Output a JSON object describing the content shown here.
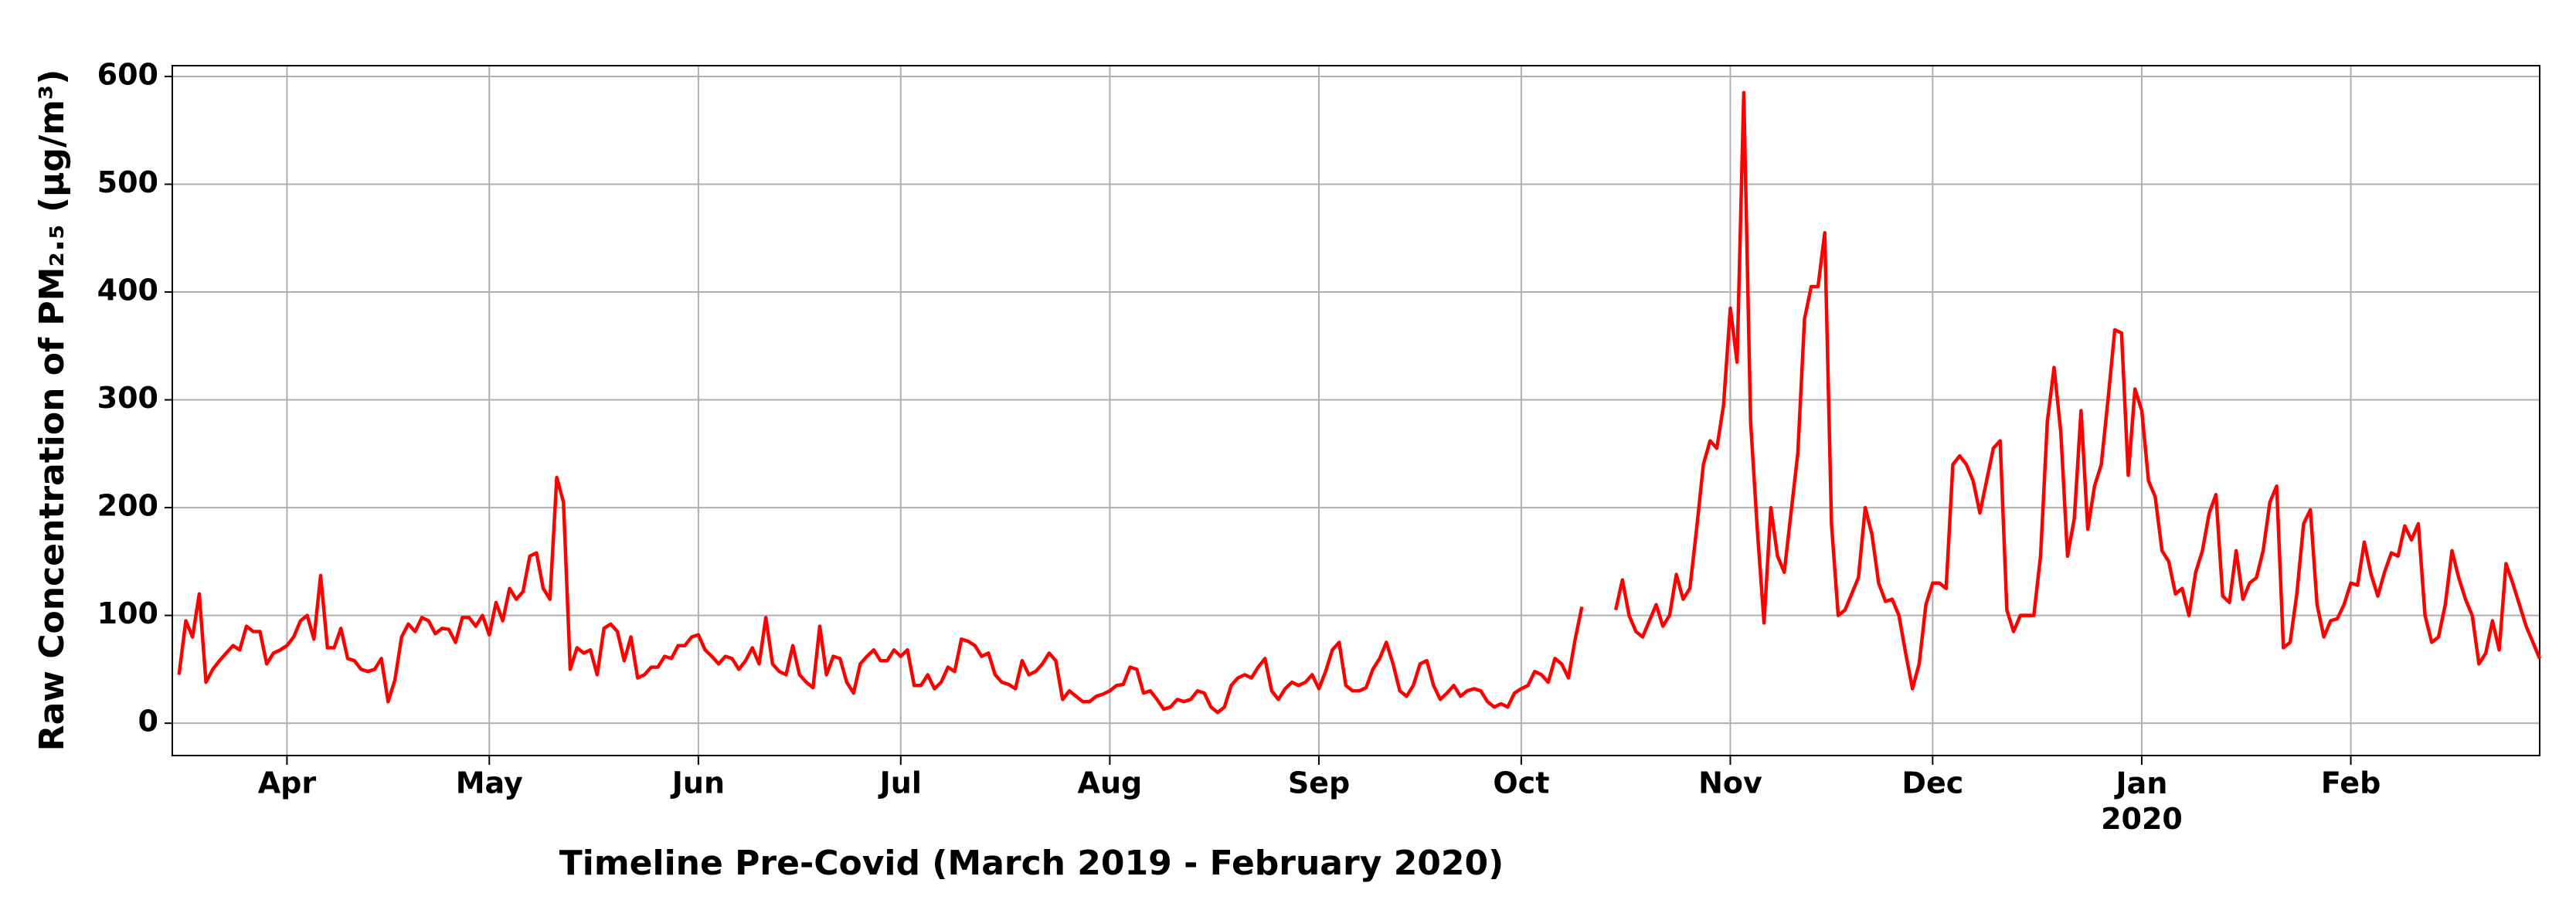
{
  "chart_data": {
    "type": "line",
    "xlabel": "Timeline Pre-Covid (March 2019 - February 2020)",
    "ylabel": "Raw Concentration of PM₂.₅ (μg/m³)",
    "xlim": [
      14,
      365
    ],
    "ylim": [
      -30,
      610
    ],
    "yticks": [
      0,
      100,
      200,
      300,
      400,
      500,
      600
    ],
    "xticks": [
      {
        "value": 31,
        "label": "Apr"
      },
      {
        "value": 61,
        "label": "May"
      },
      {
        "value": 92,
        "label": "Jun"
      },
      {
        "value": 122,
        "label": "Jul"
      },
      {
        "value": 153,
        "label": "Aug"
      },
      {
        "value": 184,
        "label": "Sep"
      },
      {
        "value": 214,
        "label": "Oct"
      },
      {
        "value": 245,
        "label": "Nov"
      },
      {
        "value": 275,
        "label": "Dec"
      },
      {
        "value": 306,
        "label": "Jan\n2020"
      },
      {
        "value": 337,
        "label": "Feb"
      }
    ],
    "grid": true,
    "x": [
      15,
      16,
      17,
      18,
      19,
      20,
      21,
      22,
      23,
      24,
      25,
      26,
      27,
      28,
      29,
      30,
      31,
      32,
      33,
      34,
      35,
      36,
      37,
      38,
      39,
      40,
      41,
      42,
      43,
      44,
      45,
      46,
      47,
      48,
      49,
      50,
      51,
      52,
      53,
      54,
      55,
      56,
      57,
      58,
      59,
      60,
      61,
      62,
      63,
      64,
      65,
      66,
      67,
      68,
      69,
      70,
      71,
      72,
      73,
      74,
      75,
      76,
      77,
      78,
      79,
      80,
      81,
      82,
      83,
      84,
      85,
      86,
      87,
      88,
      89,
      90,
      91,
      92,
      93,
      94,
      95,
      96,
      97,
      98,
      99,
      100,
      101,
      102,
      103,
      104,
      105,
      106,
      107,
      108,
      109,
      110,
      111,
      112,
      113,
      114,
      115,
      116,
      117,
      118,
      119,
      120,
      121,
      122,
      123,
      124,
      125,
      126,
      127,
      128,
      129,
      130,
      131,
      132,
      133,
      134,
      135,
      136,
      137,
      138,
      139,
      140,
      141,
      142,
      143,
      144,
      145,
      146,
      147,
      148,
      149,
      150,
      151,
      152,
      153,
      154,
      155,
      156,
      157,
      158,
      159,
      160,
      161,
      162,
      163,
      164,
      165,
      166,
      167,
      168,
      169,
      170,
      171,
      172,
      173,
      174,
      175,
      176,
      177,
      178,
      179,
      180,
      181,
      182,
      183,
      184,
      185,
      186,
      187,
      188,
      189,
      190,
      191,
      192,
      193,
      194,
      195,
      196,
      197,
      198,
      199,
      200,
      201,
      202,
      203,
      204,
      205,
      206,
      207,
      208,
      209,
      210,
      211,
      212,
      213,
      214,
      215,
      216,
      217,
      218,
      219,
      220,
      221,
      222,
      223,
      224,
      225,
      226,
      227,
      228,
      229,
      230,
      231,
      232,
      233,
      234,
      235,
      236,
      237,
      238,
      239,
      240,
      241,
      242,
      243,
      244,
      245,
      246,
      247,
      248,
      249,
      250,
      251,
      252,
      253,
      254,
      255,
      256,
      257,
      258,
      259,
      260,
      261,
      262,
      263,
      264,
      265,
      266,
      267,
      268,
      269,
      270,
      271,
      272,
      273,
      274,
      275,
      276,
      277,
      278,
      279,
      280,
      281,
      282,
      283,
      284,
      285,
      286,
      287,
      288,
      289,
      290,
      291,
      292,
      293,
      294,
      295,
      296,
      297,
      298,
      299,
      300,
      301,
      302,
      303,
      304,
      305,
      306,
      307,
      308,
      309,
      310,
      311,
      312,
      313,
      314,
      315,
      316,
      317,
      318,
      319,
      320,
      321,
      322,
      323,
      324,
      325,
      326,
      327,
      328,
      329,
      330,
      331,
      332,
      333,
      334,
      335,
      336,
      337,
      338,
      339,
      340,
      341,
      342,
      343,
      344,
      345,
      346,
      347,
      348,
      349,
      350,
      351,
      352,
      353,
      354,
      355,
      356,
      357,
      358,
      359,
      360,
      361,
      362,
      363,
      364,
      365
    ],
    "series": [
      {
        "name": "PM2.5",
        "color": "#ff0000",
        "values": [
          45,
          95,
          80,
          120,
          38,
          50,
          58,
          65,
          72,
          68,
          90,
          85,
          85,
          55,
          65,
          68,
          72,
          80,
          95,
          100,
          78,
          137,
          70,
          70,
          88,
          60,
          58,
          50,
          48,
          50,
          60,
          20,
          40,
          80,
          92,
          85,
          98,
          95,
          83,
          88,
          87,
          75,
          98,
          98,
          90,
          100,
          82,
          112,
          95,
          125,
          115,
          122,
          155,
          158,
          125,
          115,
          228,
          205,
          50,
          70,
          65,
          68,
          45,
          88,
          92,
          85,
          58,
          80,
          42,
          45,
          52,
          52,
          62,
          60,
          72,
          72,
          80,
          82,
          68,
          62,
          55,
          62,
          60,
          50,
          58,
          70,
          55,
          98,
          55,
          48,
          45,
          72,
          45,
          38,
          33,
          90,
          45,
          62,
          60,
          38,
          28,
          55,
          62,
          68,
          58,
          58,
          68,
          62,
          68,
          35,
          35,
          45,
          32,
          38,
          52,
          48,
          78,
          76,
          72,
          62,
          65,
          45,
          38,
          36,
          32,
          58,
          45,
          48,
          55,
          65,
          58,
          22,
          30,
          25,
          20,
          20,
          25,
          27,
          30,
          35,
          36,
          52,
          50,
          28,
          30,
          22,
          13,
          15,
          22,
          20,
          22,
          30,
          28,
          15,
          10,
          15,
          35,
          42,
          45,
          42,
          52,
          60,
          30,
          22,
          32,
          38,
          35,
          38,
          45,
          32,
          48,
          68,
          75,
          35,
          30,
          30,
          33,
          50,
          60,
          75,
          55,
          30,
          25,
          35,
          55,
          58,
          35,
          22,
          28,
          35,
          25,
          30,
          32,
          30,
          20,
          15,
          18,
          15,
          28,
          32,
          35,
          48,
          45,
          38,
          60,
          55,
          42,
          78,
          108,
          null,
          null,
          null,
          null,
          105,
          133,
          100,
          85,
          80,
          95,
          110,
          90,
          100,
          138,
          115,
          125,
          180,
          240,
          262,
          255,
          295,
          385,
          335,
          585,
          280,
          180,
          93,
          200,
          155,
          140,
          195,
          250,
          375,
          405,
          405,
          455,
          185,
          100,
          105,
          120,
          135,
          200,
          175,
          130,
          113,
          115,
          100,
          65,
          32,
          55,
          110,
          130,
          130,
          125,
          240,
          248,
          240,
          225,
          195,
          225,
          255,
          262,
          105,
          85,
          100,
          100,
          100,
          155,
          280,
          330,
          270,
          155,
          190,
          290,
          180,
          220,
          240,
          300,
          365,
          362,
          230,
          310,
          290,
          225,
          210,
          160,
          150,
          120,
          125,
          100,
          140,
          160,
          195,
          212,
          118,
          112,
          160,
          115,
          130,
          135,
          160,
          205,
          220,
          70,
          75,
          120,
          185,
          198,
          110,
          80,
          95,
          97,
          110,
          130,
          128,
          168,
          138,
          118,
          140,
          158,
          155,
          183,
          170,
          185,
          100,
          75,
          80,
          110,
          160,
          135,
          115,
          100,
          55,
          65,
          95,
          68,
          148,
          130,
          110,
          90,
          75,
          60
        ]
      }
    ]
  }
}
